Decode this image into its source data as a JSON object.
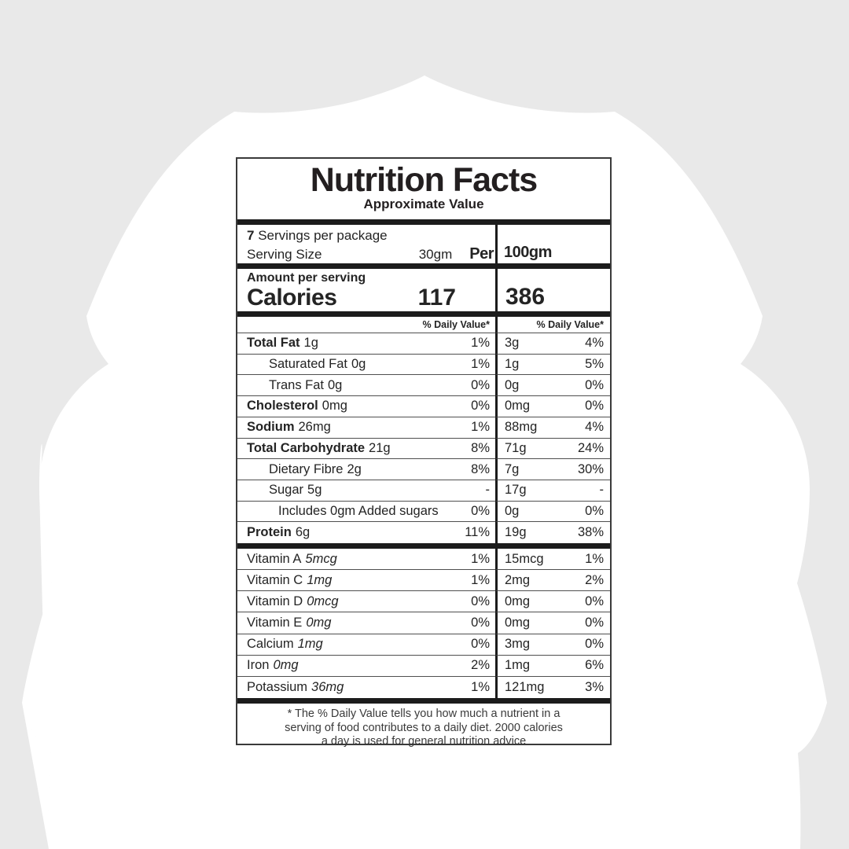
{
  "colors": {
    "page_bg": "#e9e9e9",
    "ornament": "#ffffff",
    "label_bg": "#ffffff",
    "text": "#242424",
    "thick_bar": "#1c1c1c",
    "thin_line": "#4f4f4f",
    "border": "#3a3a3a"
  },
  "label": {
    "title": "Nutrition Facts",
    "subtitle": "Approximate Value",
    "servings": {
      "count": "7",
      "text": "Servings per package"
    },
    "serving_size": {
      "label": "Serving Size",
      "value": "30gm"
    },
    "per_header": {
      "prefix": "Per",
      "value": "100gm"
    },
    "amount_per_serving": "Amount per serving",
    "calories": {
      "label": "Calories",
      "per_serving": "117",
      "per_100g": "386"
    },
    "dv_header_left": "% Daily Value*",
    "dv_header_right": "% Daily Value*",
    "rows": [
      {
        "label": "Total Fat",
        "amount": "1g",
        "bold": true,
        "indent": 0,
        "italic": false,
        "dv_serving": "1%",
        "amount_100g": "3g",
        "dv_100g": "4%"
      },
      {
        "label": "Saturated Fat",
        "amount": "0g",
        "bold": false,
        "indent": 1,
        "italic": false,
        "dv_serving": "1%",
        "amount_100g": "1g",
        "dv_100g": "5%"
      },
      {
        "label": "Trans Fat",
        "amount": "0g",
        "bold": false,
        "indent": 1,
        "italic": false,
        "dv_serving": "0%",
        "amount_100g": "0g",
        "dv_100g": "0%"
      },
      {
        "label": "Cholesterol",
        "amount": "0mg",
        "bold": true,
        "indent": 0,
        "italic": false,
        "dv_serving": "0%",
        "amount_100g": "0mg",
        "dv_100g": "0%"
      },
      {
        "label": "Sodium",
        "amount": "26mg",
        "bold": true,
        "indent": 0,
        "italic": false,
        "dv_serving": "1%",
        "amount_100g": "88mg",
        "dv_100g": "4%"
      },
      {
        "label": "Total Carbohydrate",
        "amount": "21g",
        "bold": true,
        "indent": 0,
        "italic": false,
        "dv_serving": "8%",
        "amount_100g": "71g",
        "dv_100g": "24%"
      },
      {
        "label": "Dietary Fibre",
        "amount": "2g",
        "bold": false,
        "indent": 1,
        "italic": false,
        "dv_serving": "8%",
        "amount_100g": "7g",
        "dv_100g": "30%"
      },
      {
        "label": "Sugar",
        "amount": "5g",
        "bold": false,
        "indent": 1,
        "italic": false,
        "dv_serving": "-",
        "amount_100g": "17g",
        "dv_100g": "-"
      },
      {
        "label": "Includes 0gm Added sugars",
        "amount": "",
        "bold": false,
        "indent": 2,
        "italic": false,
        "dv_serving": "0%",
        "amount_100g": "0g",
        "dv_100g": "0%"
      },
      {
        "label": "Protein",
        "amount": "6g",
        "bold": true,
        "indent": 0,
        "italic": false,
        "dv_serving": "11%",
        "amount_100g": "19g",
        "dv_100g": "38%"
      }
    ],
    "vitamin_rows": [
      {
        "label": "Vitamin A",
        "amount": "5mcg",
        "bold": false,
        "indent": 0,
        "italic": true,
        "dv_serving": "1%",
        "amount_100g": "15mcg",
        "dv_100g": "1%"
      },
      {
        "label": "Vitamin C",
        "amount": "1mg",
        "bold": false,
        "indent": 0,
        "italic": true,
        "dv_serving": "1%",
        "amount_100g": "2mg",
        "dv_100g": "2%"
      },
      {
        "label": "Vitamin D",
        "amount": "0mcg",
        "bold": false,
        "indent": 0,
        "italic": true,
        "dv_serving": "0%",
        "amount_100g": "0mg",
        "dv_100g": "0%"
      },
      {
        "label": "Vitamin E",
        "amount": "0mg",
        "bold": false,
        "indent": 0,
        "italic": true,
        "dv_serving": "0%",
        "amount_100g": "0mg",
        "dv_100g": "0%"
      },
      {
        "label": "Calcium",
        "amount": "1mg",
        "bold": false,
        "indent": 0,
        "italic": true,
        "dv_serving": "0%",
        "amount_100g": "3mg",
        "dv_100g": "0%"
      },
      {
        "label": "Iron",
        "amount": "0mg",
        "bold": false,
        "indent": 0,
        "italic": true,
        "dv_serving": "2%",
        "amount_100g": "1mg",
        "dv_100g": "6%"
      },
      {
        "label": "Potassium",
        "amount": "36mg",
        "bold": false,
        "indent": 0,
        "italic": true,
        "dv_serving": "1%",
        "amount_100g": "121mg",
        "dv_100g": "3%"
      }
    ],
    "footnote": [
      "* The % Daily Value tells you how much a nutrient in a",
      "serving of food contributes to a daily diet. 2000 calories",
      "a day is used for general nutrition advice"
    ]
  }
}
